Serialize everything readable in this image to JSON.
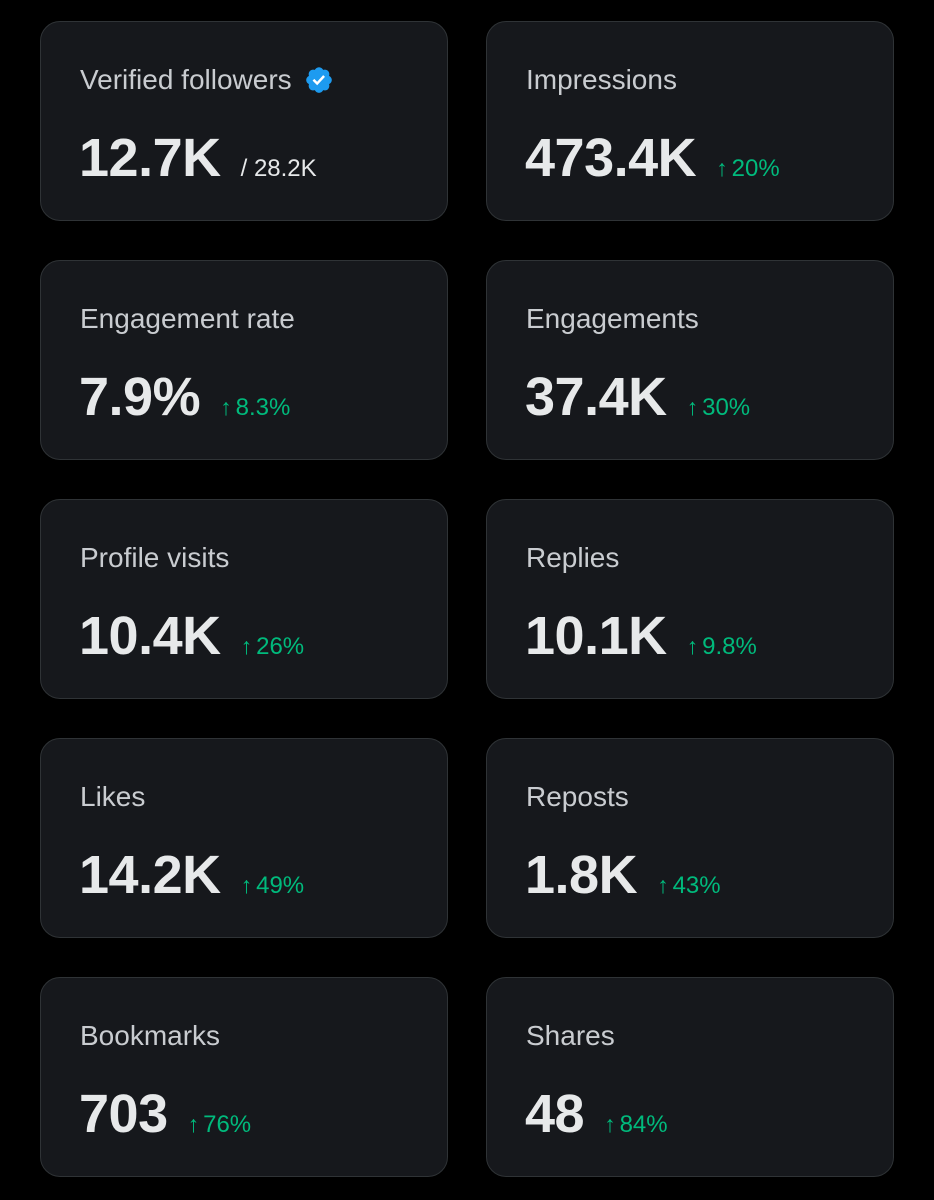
{
  "colors": {
    "background": "#000000",
    "card": "#16181c",
    "card_border": "#2f3336",
    "label": "#c9ccd0",
    "value": "#e7e9ea",
    "positive": "#00ba7c",
    "verified_badge": "#1d9bf0"
  },
  "icons": {
    "verified": "verified-badge-icon",
    "trend": "arrow-up-icon"
  },
  "metrics": [
    {
      "label": "Verified followers",
      "value": "12.7K",
      "sub": "/ 28.2K"
    },
    {
      "label": "Impressions",
      "value": "473.4K",
      "arrow": "↑",
      "delta": "20%"
    },
    {
      "label": "Engagement rate",
      "value": "7.9%",
      "arrow": "↑",
      "delta": "8.3%"
    },
    {
      "label": "Engagements",
      "value": "37.4K",
      "arrow": "↑",
      "delta": "30%"
    },
    {
      "label": "Profile visits",
      "value": "10.4K",
      "arrow": "↑",
      "delta": "26%"
    },
    {
      "label": "Replies",
      "value": "10.1K",
      "arrow": "↑",
      "delta": "9.8%"
    },
    {
      "label": "Likes",
      "value": "14.2K",
      "arrow": "↑",
      "delta": "49%"
    },
    {
      "label": "Reposts",
      "value": "1.8K",
      "arrow": "↑",
      "delta": "43%"
    },
    {
      "label": "Bookmarks",
      "value": "703",
      "arrow": "↑",
      "delta": "76%"
    },
    {
      "label": "Shares",
      "value": "48",
      "arrow": "↑",
      "delta": "84%"
    }
  ]
}
